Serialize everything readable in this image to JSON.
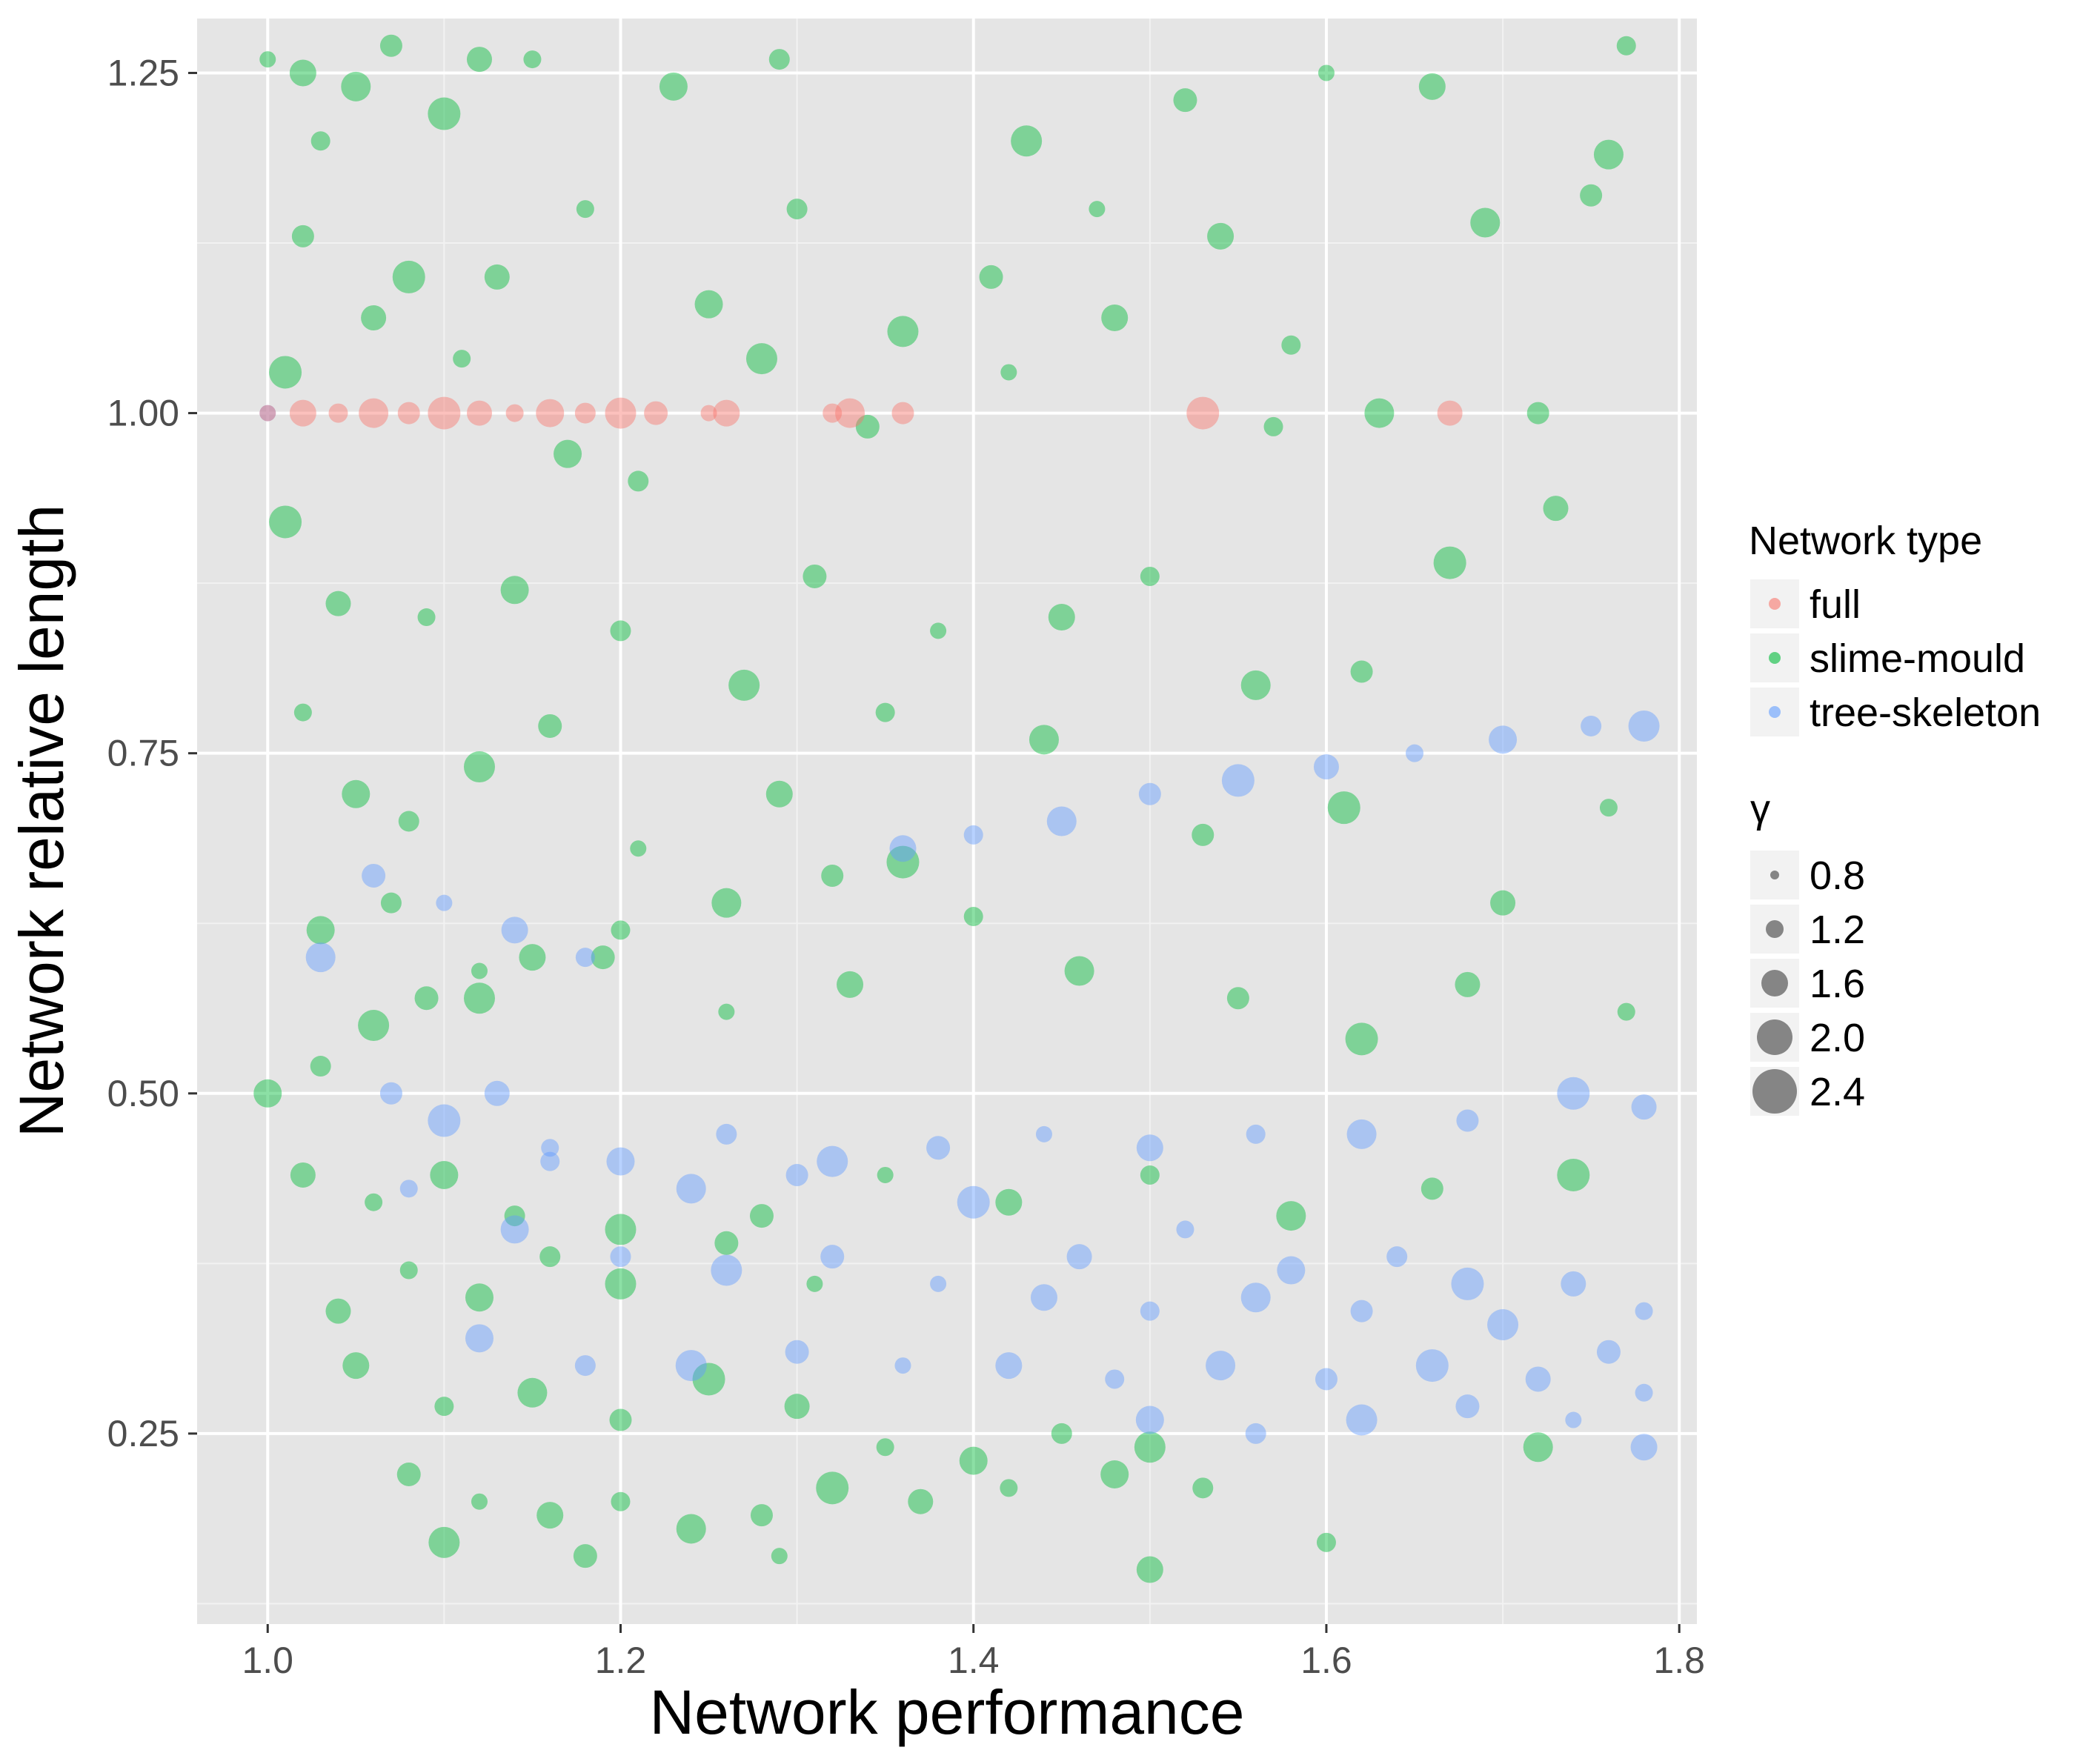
{
  "chart_data": {
    "type": "scatter",
    "xlabel": "Network performance",
    "ylabel": "Network relative length",
    "xlim": [
      0.96,
      1.81
    ],
    "ylim": [
      0.11,
      1.29
    ],
    "x_ticks": [
      "1.0",
      "1.2",
      "1.4",
      "1.6",
      "1.8"
    ],
    "y_ticks": [
      "0.25",
      "0.50",
      "0.75",
      "1.00",
      "1.25"
    ],
    "grid": true,
    "panel_background": "#e5e5e5",
    "legend_position": "right",
    "legend_color_title": "Network type",
    "legend_size_title": "γ",
    "size_legend": [
      "0.8",
      "1.2",
      "1.6",
      "2.0",
      "2.4"
    ],
    "series": [
      {
        "name": "full",
        "color": "#F8766D",
        "points": [
          [
            1.0,
            1.0
          ],
          [
            1.02,
            1.0
          ],
          [
            1.04,
            1.0
          ],
          [
            1.06,
            1.0
          ],
          [
            1.08,
            1.0
          ],
          [
            1.1,
            1.0
          ],
          [
            1.12,
            1.0
          ],
          [
            1.14,
            1.0
          ],
          [
            1.16,
            1.0
          ],
          [
            1.18,
            1.0
          ],
          [
            1.2,
            1.0
          ],
          [
            1.22,
            1.0
          ],
          [
            1.25,
            1.0
          ],
          [
            1.26,
            1.0
          ],
          [
            1.32,
            1.0
          ],
          [
            1.33,
            1.0
          ],
          [
            1.36,
            1.0
          ],
          [
            1.53,
            1.0
          ],
          [
            1.67,
            1.0
          ]
        ]
      },
      {
        "name": "slime-mould",
        "color": "#00BA38",
        "points": [
          [
            1.0,
            1.26
          ],
          [
            1.02,
            1.25
          ],
          [
            1.03,
            1.2
          ],
          [
            1.05,
            1.24
          ],
          [
            1.07,
            1.27
          ],
          [
            1.1,
            1.22
          ],
          [
            1.12,
            1.26
          ],
          [
            1.15,
            1.26
          ],
          [
            1.23,
            1.24
          ],
          [
            1.29,
            1.26
          ],
          [
            1.43,
            1.2
          ],
          [
            1.52,
            1.23
          ],
          [
            1.6,
            1.25
          ],
          [
            1.66,
            1.24
          ],
          [
            1.77,
            1.27
          ],
          [
            1.76,
            1.19
          ],
          [
            1.02,
            1.13
          ],
          [
            1.08,
            1.1
          ],
          [
            1.13,
            1.1
          ],
          [
            1.18,
            1.15
          ],
          [
            1.25,
            1.08
          ],
          [
            1.3,
            1.15
          ],
          [
            1.36,
            1.06
          ],
          [
            1.41,
            1.1
          ],
          [
            1.47,
            1.15
          ],
          [
            1.54,
            1.13
          ],
          [
            1.58,
            1.05
          ],
          [
            1.69,
            1.14
          ],
          [
            1.75,
            1.16
          ],
          [
            1.01,
            1.03
          ],
          [
            1.06,
            1.07
          ],
          [
            1.11,
            1.04
          ],
          [
            1.17,
            0.97
          ],
          [
            1.21,
            0.95
          ],
          [
            1.28,
            1.04
          ],
          [
            1.34,
            0.99
          ],
          [
            1.42,
            1.03
          ],
          [
            1.48,
            1.07
          ],
          [
            1.57,
            0.99
          ],
          [
            1.63,
            1.0
          ],
          [
            1.72,
            1.0
          ],
          [
            1.01,
            0.92
          ],
          [
            1.04,
            0.86
          ],
          [
            1.09,
            0.85
          ],
          [
            1.14,
            0.87
          ],
          [
            1.2,
            0.84
          ],
          [
            1.27,
            0.8
          ],
          [
            1.31,
            0.88
          ],
          [
            1.38,
            0.84
          ],
          [
            1.45,
            0.85
          ],
          [
            1.5,
            0.88
          ],
          [
            1.56,
            0.8
          ],
          [
            1.62,
            0.81
          ],
          [
            1.67,
            0.89
          ],
          [
            1.73,
            0.93
          ],
          [
            1.02,
            0.78
          ],
          [
            1.05,
            0.72
          ],
          [
            1.08,
            0.7
          ],
          [
            1.12,
            0.74
          ],
          [
            1.16,
            0.77
          ],
          [
            1.21,
            0.68
          ],
          [
            1.29,
            0.72
          ],
          [
            1.35,
            0.78
          ],
          [
            1.44,
            0.76
          ],
          [
            1.53,
            0.69
          ],
          [
            1.61,
            0.71
          ],
          [
            1.7,
            0.64
          ],
          [
            1.76,
            0.71
          ],
          [
            1.03,
            0.62
          ],
          [
            1.07,
            0.64
          ],
          [
            1.12,
            0.57
          ],
          [
            1.19,
            0.6
          ],
          [
            1.26,
            0.56
          ],
          [
            1.33,
            0.58
          ],
          [
            1.4,
            0.63
          ],
          [
            1.46,
            0.59
          ],
          [
            1.55,
            0.57
          ],
          [
            1.62,
            0.54
          ],
          [
            1.68,
            0.58
          ],
          [
            1.77,
            0.56
          ],
          [
            1.0,
            0.5
          ],
          [
            1.03,
            0.52
          ],
          [
            1.06,
            0.55
          ],
          [
            1.09,
            0.57
          ],
          [
            1.12,
            0.59
          ],
          [
            1.15,
            0.6
          ],
          [
            1.2,
            0.62
          ],
          [
            1.26,
            0.64
          ],
          [
            1.32,
            0.66
          ],
          [
            1.36,
            0.67
          ],
          [
            1.02,
            0.44
          ],
          [
            1.06,
            0.42
          ],
          [
            1.1,
            0.44
          ],
          [
            1.14,
            0.41
          ],
          [
            1.2,
            0.4
          ],
          [
            1.28,
            0.41
          ],
          [
            1.35,
            0.44
          ],
          [
            1.42,
            0.42
          ],
          [
            1.5,
            0.44
          ],
          [
            1.58,
            0.41
          ],
          [
            1.66,
            0.43
          ],
          [
            1.74,
            0.44
          ],
          [
            1.04,
            0.34
          ],
          [
            1.08,
            0.37
          ],
          [
            1.12,
            0.35
          ],
          [
            1.16,
            0.38
          ],
          [
            1.2,
            0.36
          ],
          [
            1.26,
            0.39
          ],
          [
            1.31,
            0.36
          ],
          [
            1.05,
            0.3
          ],
          [
            1.1,
            0.27
          ],
          [
            1.15,
            0.28
          ],
          [
            1.2,
            0.26
          ],
          [
            1.25,
            0.29
          ],
          [
            1.3,
            0.27
          ],
          [
            1.35,
            0.24
          ],
          [
            1.4,
            0.23
          ],
          [
            1.45,
            0.25
          ],
          [
            1.5,
            0.24
          ],
          [
            1.08,
            0.22
          ],
          [
            1.12,
            0.2
          ],
          [
            1.16,
            0.19
          ],
          [
            1.2,
            0.2
          ],
          [
            1.24,
            0.18
          ],
          [
            1.28,
            0.19
          ],
          [
            1.32,
            0.21
          ],
          [
            1.37,
            0.2
          ],
          [
            1.42,
            0.21
          ],
          [
            1.48,
            0.22
          ],
          [
            1.53,
            0.21
          ],
          [
            1.1,
            0.17
          ],
          [
            1.18,
            0.16
          ],
          [
            1.29,
            0.16
          ],
          [
            1.5,
            0.15
          ],
          [
            1.6,
            0.17
          ],
          [
            1.72,
            0.24
          ]
        ]
      },
      {
        "name": "tree-skeleton",
        "color": "#619CFF",
        "points": [
          [
            1.0,
            1.0
          ],
          [
            1.36,
            0.68
          ],
          [
            1.4,
            0.69
          ],
          [
            1.45,
            0.7
          ],
          [
            1.5,
            0.72
          ],
          [
            1.55,
            0.73
          ],
          [
            1.6,
            0.74
          ],
          [
            1.65,
            0.75
          ],
          [
            1.7,
            0.76
          ],
          [
            1.75,
            0.77
          ],
          [
            1.78,
            0.77
          ],
          [
            1.06,
            0.66
          ],
          [
            1.1,
            0.64
          ],
          [
            1.14,
            0.62
          ],
          [
            1.18,
            0.6
          ],
          [
            1.03,
            0.6
          ],
          [
            1.07,
            0.5
          ],
          [
            1.1,
            0.48
          ],
          [
            1.13,
            0.5
          ],
          [
            1.16,
            0.46
          ],
          [
            1.2,
            0.45
          ],
          [
            1.26,
            0.47
          ],
          [
            1.32,
            0.45
          ],
          [
            1.38,
            0.46
          ],
          [
            1.44,
            0.47
          ],
          [
            1.5,
            0.46
          ],
          [
            1.56,
            0.47
          ],
          [
            1.62,
            0.47
          ],
          [
            1.68,
            0.48
          ],
          [
            1.74,
            0.5
          ],
          [
            1.78,
            0.49
          ],
          [
            1.08,
            0.43
          ],
          [
            1.14,
            0.4
          ],
          [
            1.2,
            0.38
          ],
          [
            1.26,
            0.37
          ],
          [
            1.32,
            0.38
          ],
          [
            1.38,
            0.36
          ],
          [
            1.44,
            0.35
          ],
          [
            1.5,
            0.34
          ],
          [
            1.56,
            0.35
          ],
          [
            1.62,
            0.34
          ],
          [
            1.68,
            0.36
          ],
          [
            1.74,
            0.36
          ],
          [
            1.78,
            0.34
          ],
          [
            1.12,
            0.32
          ],
          [
            1.18,
            0.3
          ],
          [
            1.24,
            0.3
          ],
          [
            1.3,
            0.31
          ],
          [
            1.36,
            0.3
          ],
          [
            1.42,
            0.3
          ],
          [
            1.48,
            0.29
          ],
          [
            1.54,
            0.3
          ],
          [
            1.6,
            0.29
          ],
          [
            1.66,
            0.3
          ],
          [
            1.72,
            0.29
          ],
          [
            1.78,
            0.28
          ],
          [
            1.5,
            0.26
          ],
          [
            1.56,
            0.25
          ],
          [
            1.62,
            0.26
          ],
          [
            1.68,
            0.27
          ],
          [
            1.74,
            0.26
          ],
          [
            1.78,
            0.24
          ],
          [
            1.16,
            0.45
          ],
          [
            1.24,
            0.43
          ],
          [
            1.3,
            0.44
          ],
          [
            1.4,
            0.42
          ],
          [
            1.46,
            0.38
          ],
          [
            1.52,
            0.4
          ],
          [
            1.58,
            0.37
          ],
          [
            1.64,
            0.38
          ],
          [
            1.7,
            0.33
          ],
          [
            1.76,
            0.31
          ]
        ]
      }
    ]
  }
}
